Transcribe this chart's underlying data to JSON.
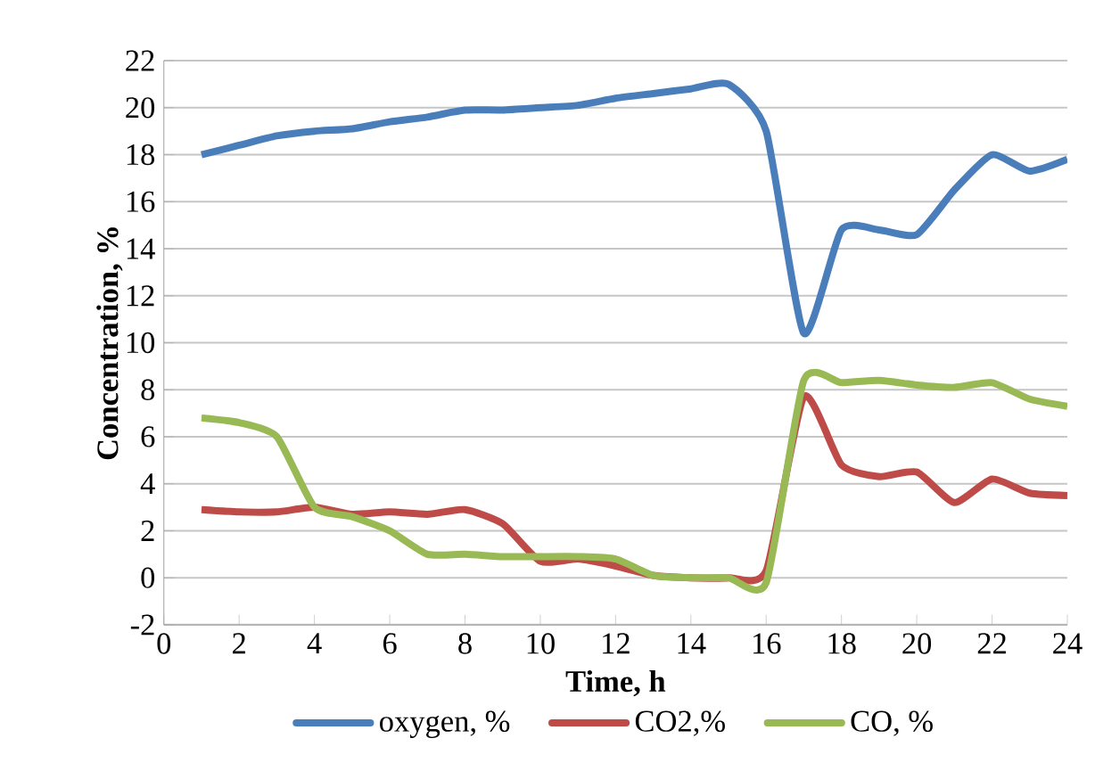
{
  "chart_data": {
    "type": "line",
    "xlabel": "Time, h",
    "ylabel": "Concentration, %",
    "x": [
      1,
      2,
      3,
      4,
      5,
      6,
      7,
      8,
      9,
      10,
      11,
      12,
      13,
      14,
      15,
      16,
      17,
      18,
      19,
      20,
      21,
      22,
      23,
      24
    ],
    "series": [
      {
        "name": "oxygen, %",
        "color": "#4a7ebb",
        "values": [
          18,
          18.4,
          18.8,
          19,
          19.1,
          19.4,
          19.6,
          19.9,
          19.9,
          20,
          20.1,
          20.4,
          20.6,
          20.8,
          21,
          19,
          10.4,
          14.8,
          14.8,
          14.6,
          16.5,
          18,
          17.3,
          17.8
        ]
      },
      {
        "name": "CO2,%",
        "color": "#be4b48",
        "values": [
          2.9,
          2.8,
          2.8,
          3.0,
          2.7,
          2.8,
          2.7,
          2.9,
          2.3,
          0.7,
          0.8,
          0.5,
          0.1,
          0,
          0,
          0.3,
          7.7,
          4.8,
          4.3,
          4.5,
          3.2,
          4.2,
          3.6,
          3.5
        ]
      },
      {
        "name": "CO, %",
        "color": "#98b954",
        "values": [
          6.8,
          6.6,
          6,
          3,
          2.6,
          2,
          1,
          1,
          0.9,
          0.9,
          0.9,
          0.8,
          0.1,
          0,
          0,
          -0.2,
          8.4,
          8.3,
          8.4,
          8.2,
          8.1,
          8.3,
          7.6,
          7.3
        ]
      }
    ],
    "xlim": [
      0,
      24
    ],
    "xticks": [
      0,
      2,
      4,
      6,
      8,
      10,
      12,
      14,
      16,
      18,
      20,
      22,
      24
    ],
    "ylim": [
      -2,
      22
    ],
    "yticks": [
      -2,
      0,
      2,
      4,
      6,
      8,
      10,
      12,
      14,
      16,
      18,
      20,
      22
    ],
    "grid": "y",
    "legend": "bottom",
    "line_style": "solid"
  }
}
